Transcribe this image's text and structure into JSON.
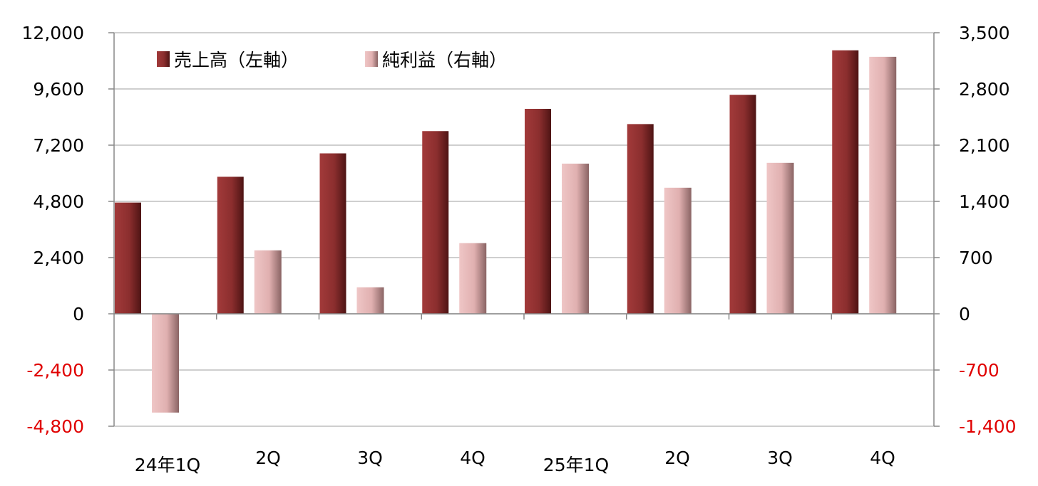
{
  "chart_data": {
    "type": "bar",
    "categories": [
      "24年1Q",
      "2Q",
      "3Q",
      "4Q",
      "25年1Q",
      "2Q",
      "3Q",
      "4Q"
    ],
    "series": [
      {
        "name": "売上高（左軸）",
        "axis": "left",
        "values": [
          4750,
          5850,
          6850,
          7800,
          8750,
          8100,
          9350,
          11250
        ]
      },
      {
        "name": "純利益（右軸）",
        "axis": "right",
        "values": [
          -1230,
          790,
          330,
          880,
          1870,
          1570,
          1880,
          3200
        ]
      }
    ],
    "y_left": {
      "ylim": [
        -4800,
        12000
      ],
      "ticks": [
        "12,000",
        "9,600",
        "7,200",
        "4,800",
        "2,400",
        "0",
        "-2,400",
        "-4,800"
      ],
      "tick_values": [
        12000,
        9600,
        7200,
        4800,
        2400,
        0,
        -2400,
        -4800
      ]
    },
    "y_right": {
      "ylim": [
        -1400,
        3500
      ],
      "ticks": [
        "3,500",
        "2,800",
        "2,100",
        "1,400",
        "700",
        "0",
        "-700",
        "-1,400"
      ],
      "tick_values": [
        3500,
        2800,
        2100,
        1400,
        700,
        0,
        -700,
        -1400
      ]
    },
    "grid": true,
    "legend_position": "top-left",
    "colors": {
      "sales": "#8b2e2e",
      "sales_dark": "#5a1a1a",
      "profit": "#e3b4b4",
      "profit_dark": "#8f6a6a",
      "negative_tick": "#e00000",
      "positive_tick": "#000000",
      "grid": "#bfbfbf",
      "axis": "#888888"
    }
  }
}
